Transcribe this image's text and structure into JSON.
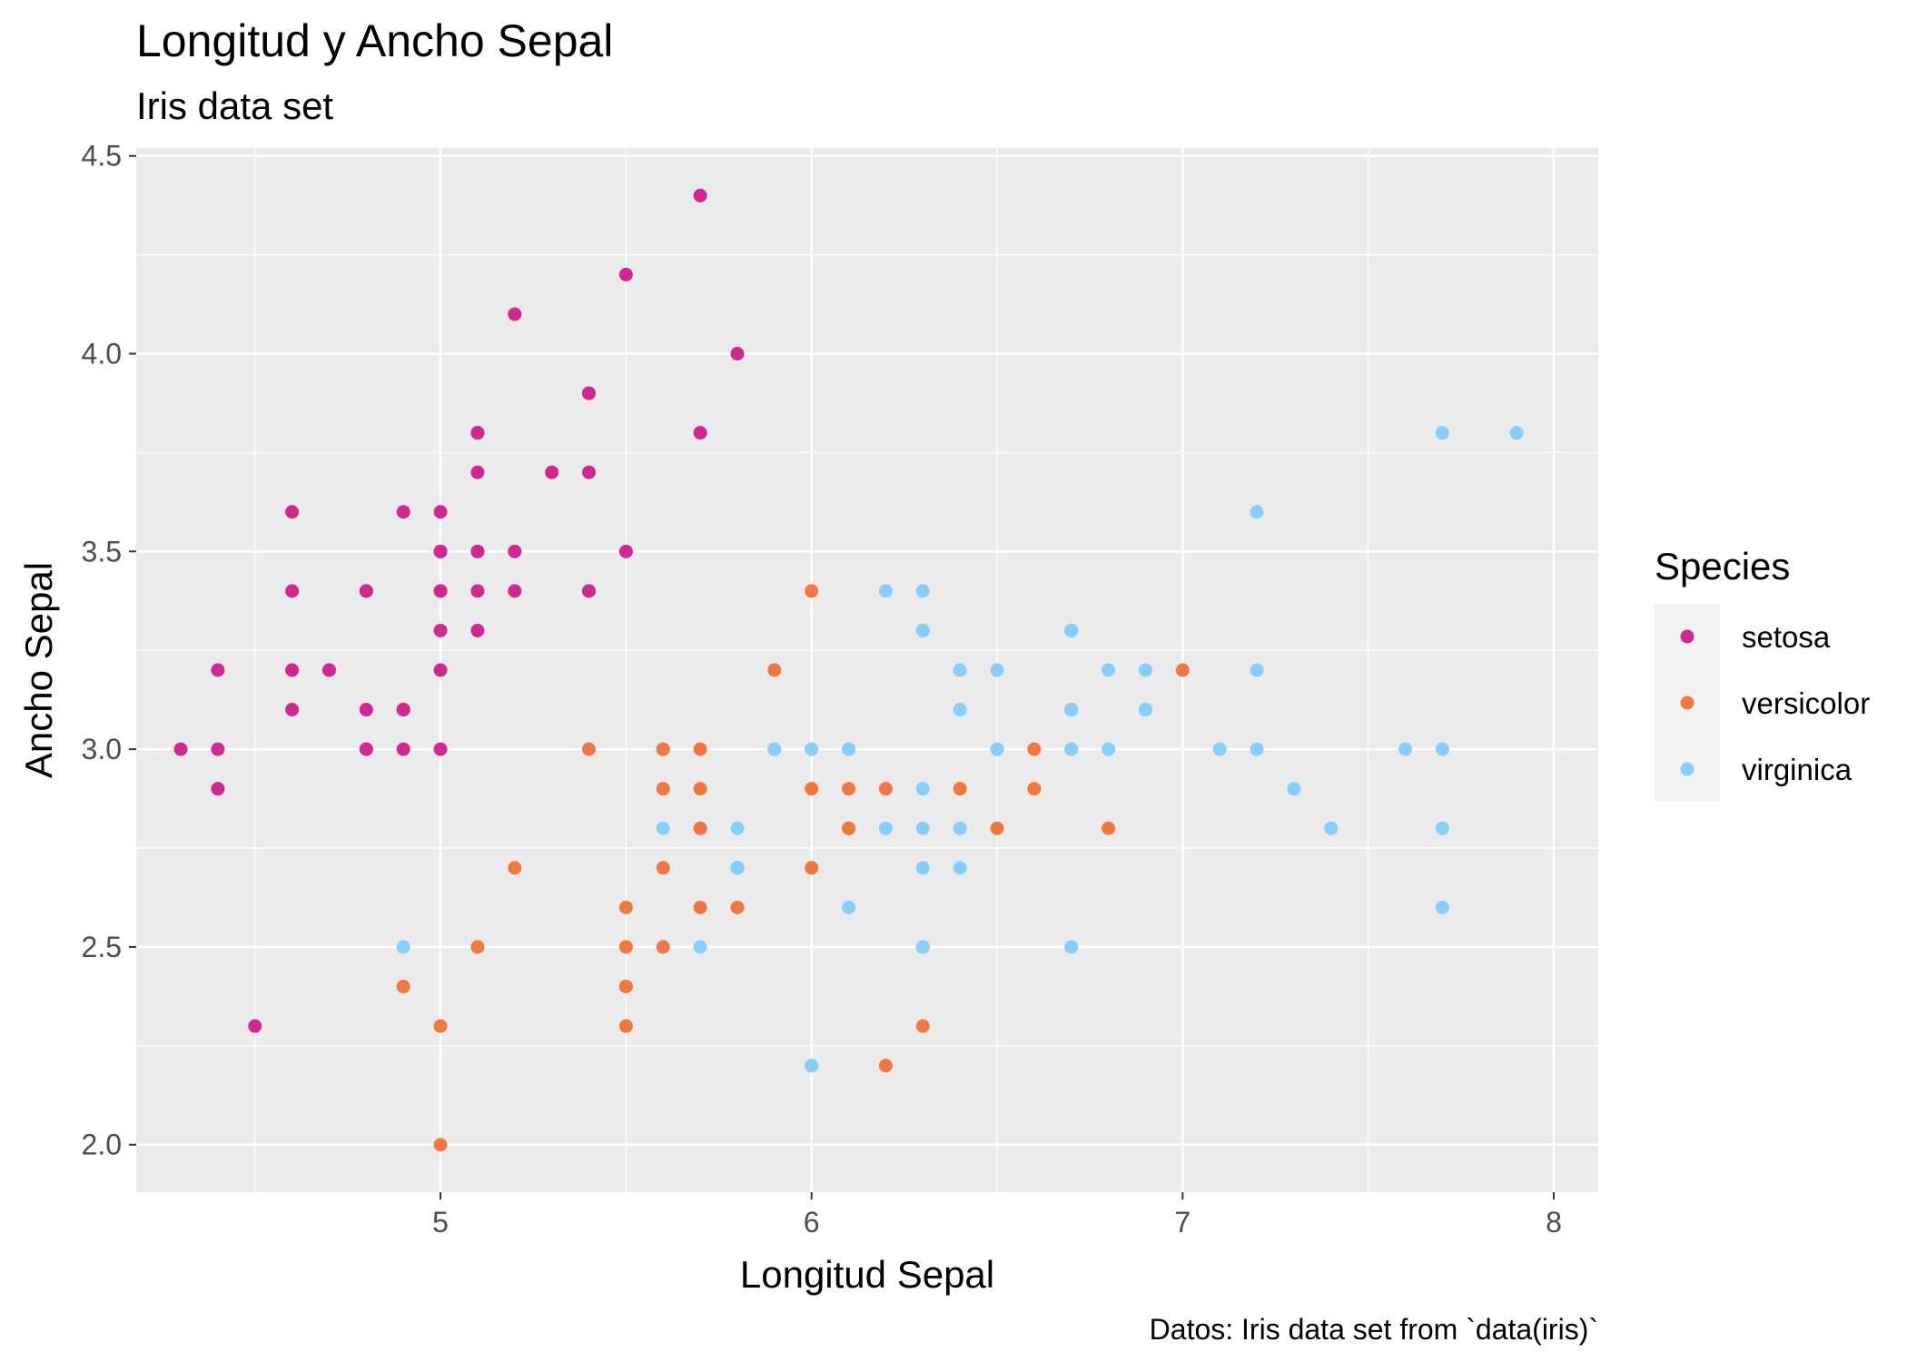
{
  "chart_data": {
    "type": "scatter",
    "title": "Longitud y Ancho Sepal",
    "subtitle": "Iris data set",
    "xlabel": "Longitud Sepal",
    "ylabel": "Ancho Sepal",
    "caption": "Datos: Iris data set from `data(iris)`",
    "xlim": [
      4.18,
      8.12
    ],
    "ylim": [
      1.88,
      4.52
    ],
    "xticks": [
      5,
      6,
      7,
      8
    ],
    "xtick_labels": [
      "5",
      "6",
      "7",
      "8"
    ],
    "yticks": [
      2.0,
      2.5,
      3.0,
      3.5,
      4.0,
      4.5
    ],
    "ytick_labels": [
      "2.0",
      "2.5",
      "3.0",
      "3.5",
      "4.0",
      "4.5"
    ],
    "grid": true,
    "legend": {
      "title": "Species",
      "position": "right"
    },
    "panel_color": "#ebebeb",
    "series": [
      {
        "name": "setosa",
        "color": "#d0288f",
        "x": [
          5.1,
          4.9,
          4.7,
          4.6,
          5.0,
          5.4,
          4.6,
          5.0,
          4.4,
          4.9,
          5.4,
          4.8,
          4.8,
          4.3,
          5.8,
          5.7,
          5.4,
          5.1,
          5.7,
          5.1,
          5.4,
          5.1,
          4.6,
          5.1,
          4.8,
          5.0,
          5.0,
          5.2,
          5.2,
          4.7,
          4.8,
          5.4,
          5.2,
          5.5,
          4.9,
          5.0,
          5.5,
          4.9,
          4.4,
          5.1,
          5.0,
          4.5,
          4.4,
          5.0,
          5.1,
          4.8,
          5.1,
          4.6,
          5.3,
          5.0
        ],
        "y": [
          3.5,
          3.0,
          3.2,
          3.1,
          3.6,
          3.9,
          3.4,
          3.4,
          2.9,
          3.1,
          3.7,
          3.4,
          3.0,
          3.0,
          4.0,
          4.4,
          3.9,
          3.5,
          3.8,
          3.8,
          3.4,
          3.7,
          3.6,
          3.3,
          3.4,
          3.0,
          3.4,
          3.5,
          3.4,
          3.2,
          3.1,
          3.4,
          4.1,
          4.2,
          3.1,
          3.2,
          3.5,
          3.6,
          3.0,
          3.4,
          3.5,
          2.3,
          3.2,
          3.5,
          3.8,
          3.0,
          3.8,
          3.2,
          3.7,
          3.3
        ]
      },
      {
        "name": "versicolor",
        "color": "#f07840",
        "x": [
          7.0,
          6.4,
          6.9,
          5.5,
          6.5,
          5.7,
          6.3,
          4.9,
          6.6,
          5.2,
          5.0,
          5.9,
          6.0,
          6.1,
          5.6,
          6.7,
          5.6,
          5.8,
          6.2,
          5.6,
          5.9,
          6.1,
          6.3,
          6.1,
          6.4,
          6.6,
          6.8,
          6.7,
          6.0,
          5.7,
          5.5,
          5.5,
          5.8,
          6.0,
          5.4,
          6.0,
          6.7,
          6.3,
          5.6,
          5.5,
          5.5,
          6.1,
          5.8,
          5.0,
          5.6,
          5.7,
          5.7,
          6.2,
          5.1,
          5.7
        ],
        "y": [
          3.2,
          3.2,
          3.1,
          2.3,
          2.8,
          2.8,
          3.3,
          2.4,
          2.9,
          2.7,
          2.0,
          3.0,
          2.2,
          2.9,
          2.9,
          3.1,
          3.0,
          2.7,
          2.2,
          2.5,
          3.2,
          2.8,
          2.5,
          2.8,
          2.9,
          3.0,
          2.8,
          3.0,
          2.9,
          2.6,
          2.4,
          2.4,
          2.7,
          2.7,
          3.0,
          3.4,
          3.1,
          2.3,
          3.0,
          2.5,
          2.6,
          3.0,
          2.6,
          2.3,
          2.7,
          3.0,
          2.9,
          2.9,
          2.5,
          2.8
        ]
      },
      {
        "name": "virginica",
        "color": "#87cefa",
        "x": [
          6.3,
          5.8,
          7.1,
          6.3,
          6.5,
          7.6,
          4.9,
          7.3,
          6.7,
          7.2,
          6.5,
          6.4,
          6.8,
          5.7,
          5.8,
          6.4,
          6.5,
          7.7,
          7.7,
          6.0,
          6.9,
          5.6,
          7.7,
          6.3,
          6.7,
          7.2,
          6.2,
          6.1,
          6.4,
          7.2,
          7.4,
          7.9,
          6.4,
          6.3,
          6.1,
          7.7,
          6.3,
          6.4,
          6.0,
          6.9,
          6.7,
          6.9,
          5.8,
          6.8,
          6.7,
          6.7,
          6.3,
          6.5,
          6.2,
          5.9
        ],
        "y": [
          3.3,
          2.7,
          3.0,
          2.9,
          3.0,
          3.0,
          2.5,
          2.9,
          2.5,
          3.6,
          3.2,
          2.7,
          3.0,
          2.5,
          2.8,
          3.2,
          3.0,
          3.8,
          2.6,
          2.2,
          3.2,
          2.8,
          2.8,
          2.7,
          3.3,
          3.2,
          2.8,
          3.0,
          2.8,
          3.0,
          2.8,
          3.8,
          2.8,
          2.8,
          2.6,
          3.0,
          3.4,
          3.1,
          3.0,
          3.1,
          3.1,
          3.1,
          2.7,
          3.2,
          3.3,
          3.0,
          2.5,
          3.0,
          3.4,
          3.0
        ]
      }
    ]
  }
}
